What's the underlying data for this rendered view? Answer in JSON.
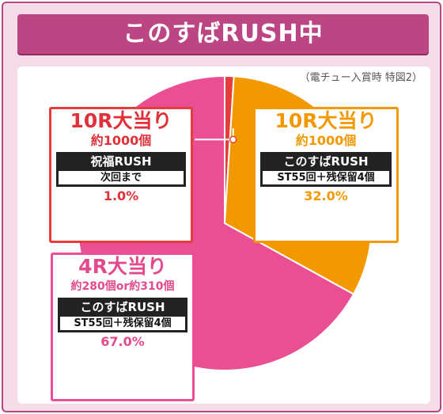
{
  "header": {
    "title": "このすばRUSH中"
  },
  "note": "（電チュー入賞時 特図2）",
  "chart_data": {
    "type": "pie",
    "start_angle_deg": 0,
    "direction": "clockwise",
    "slices": [
      {
        "label": "10R大当り",
        "value": 1.0,
        "color": "#e53c3c"
      },
      {
        "label": "10R大当り",
        "value": 32.0,
        "color": "#f29800"
      },
      {
        "label": "4R大当り",
        "value": 67.0,
        "color": "#ea4f93"
      }
    ]
  },
  "callouts": {
    "red": {
      "title": "10R大当り",
      "payout": "約1000個",
      "mode": "祝福RUSH",
      "condition": "次回まで",
      "percent": "1.0%"
    },
    "orange": {
      "title": "10R大当り",
      "payout": "約1000個",
      "mode": "このすばRUSH",
      "condition": "ST55回＋残保留4個",
      "percent": "32.0%"
    },
    "pink": {
      "title": "4R大当り",
      "payout": "約280個or約310個",
      "mode": "このすばRUSH",
      "condition": "ST55回＋残保留4個",
      "percent": "67.0%"
    }
  }
}
